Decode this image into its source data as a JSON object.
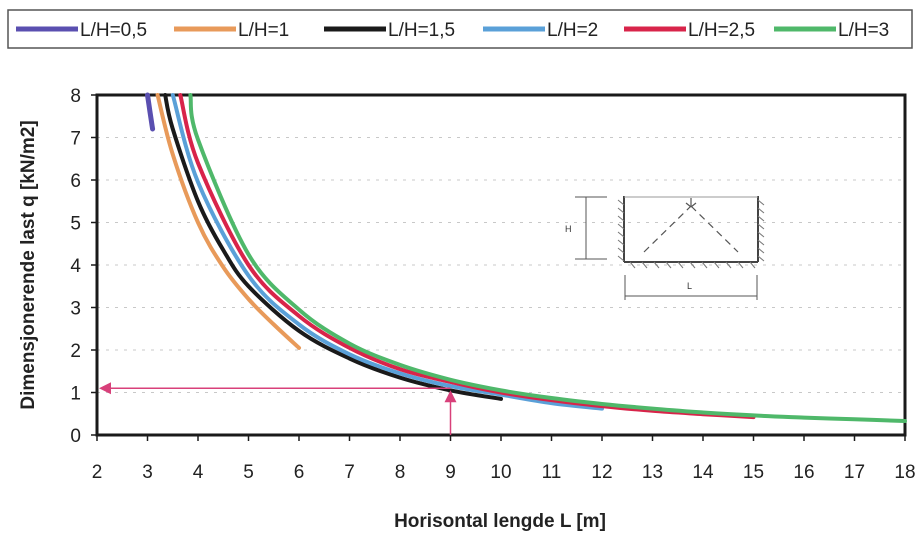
{
  "chart_data": {
    "type": "line",
    "title": "",
    "xlabel": "Horisontal lengde L [m]",
    "ylabel": "Dimensjonerende last q [kN/m2]",
    "xlim": [
      2,
      18
    ],
    "ylim": [
      0,
      8
    ],
    "xticks": [
      "2",
      "3",
      "4",
      "5",
      "6",
      "7",
      "8",
      "9",
      "10",
      "11",
      "12",
      "13",
      "14",
      "15",
      "16",
      "17",
      "18"
    ],
    "yticks": [
      "0",
      "1",
      "2",
      "3",
      "4",
      "5",
      "6",
      "7",
      "8"
    ],
    "grid": true,
    "legend_position": "top",
    "series": [
      {
        "name": "L/H=0,5",
        "color": "#5a4fb0",
        "x": [
          3.0,
          3.05,
          3.1
        ],
        "y": [
          8.0,
          7.6,
          7.2
        ]
      },
      {
        "name": "L/H=1",
        "color": "#e89a5a",
        "x": [
          3.2,
          3.5,
          4.0,
          4.5,
          5.0,
          5.5,
          6.0
        ],
        "y": [
          8.0,
          6.6,
          5.0,
          3.95,
          3.2,
          2.6,
          2.05
        ]
      },
      {
        "name": "L/H=1,5",
        "color": "#1a1a1a",
        "x": [
          3.35,
          3.5,
          4.0,
          4.5,
          5.0,
          6.0,
          7.0,
          8.0,
          9.0,
          10.0
        ],
        "y": [
          8.0,
          7.2,
          5.5,
          4.35,
          3.5,
          2.45,
          1.8,
          1.35,
          1.05,
          0.85
        ]
      },
      {
        "name": "L/H=2",
        "color": "#5aa0d8",
        "x": [
          3.5,
          4.0,
          5.0,
          6.0,
          7.0,
          8.0,
          9.0,
          10.0,
          11.0,
          12.0
        ],
        "y": [
          8.0,
          5.95,
          3.75,
          2.6,
          1.9,
          1.45,
          1.15,
          0.95,
          0.75,
          0.62
        ]
      },
      {
        "name": "L/H=2,5",
        "color": "#d8244a",
        "x": [
          3.65,
          4.0,
          5.0,
          6.0,
          7.0,
          8.0,
          9.0,
          10.0,
          11.0,
          12.0,
          13.0,
          14.0,
          15.0
        ],
        "y": [
          8.0,
          6.4,
          4.0,
          2.8,
          2.05,
          1.55,
          1.25,
          1.0,
          0.82,
          0.68,
          0.57,
          0.49,
          0.42
        ]
      },
      {
        "name": "L/H=3",
        "color": "#4fb86a",
        "x": [
          3.85,
          4.0,
          5.0,
          6.0,
          7.0,
          8.0,
          9.0,
          10.0,
          11.0,
          12.0,
          13.0,
          14.0,
          15.0,
          16.0,
          17.0,
          18.0
        ],
        "y": [
          8.0,
          6.95,
          4.25,
          2.95,
          2.15,
          1.65,
          1.3,
          1.05,
          0.87,
          0.73,
          0.62,
          0.53,
          0.46,
          0.41,
          0.37,
          0.33
        ]
      }
    ],
    "annotation": {
      "color": "#d8407a",
      "x": 9,
      "y": 1.1
    },
    "inset": {
      "height_label": "H",
      "length_label": "L"
    }
  }
}
